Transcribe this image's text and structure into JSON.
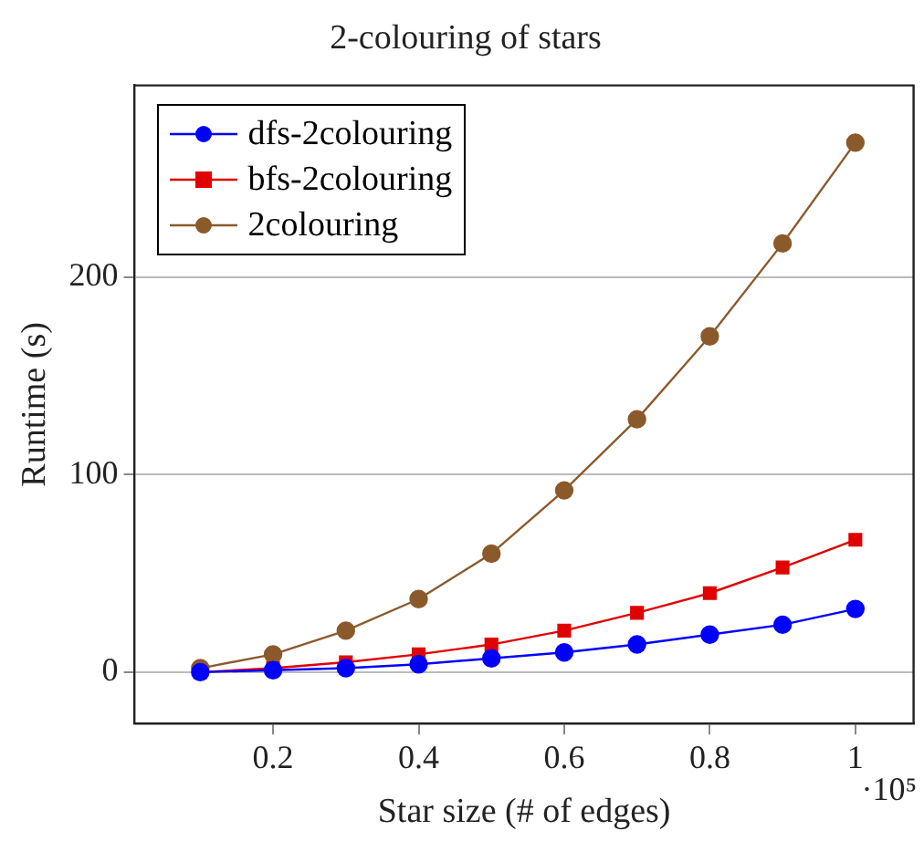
{
  "chart_data": {
    "type": "line",
    "title": "2-colouring of stars",
    "xlabel": "Star size (# of edges)",
    "ylabel": "Runtime (s)",
    "x": [
      0.1,
      0.2,
      0.3,
      0.4,
      0.5,
      0.6,
      0.7,
      0.8,
      0.9,
      1
    ],
    "series": [
      {
        "name": "dfs-2colouring",
        "color": "#0000ff",
        "marker": "circle",
        "values": [
          0,
          1,
          2,
          4,
          7,
          10,
          14,
          19,
          24,
          32
        ]
      },
      {
        "name": "bfs-2colouring",
        "color": "#e00000",
        "marker": "square",
        "values": [
          0,
          2,
          5,
          9,
          14,
          21,
          30,
          40,
          53,
          67
        ]
      },
      {
        "name": "2colouring",
        "color": "#8b5a2b",
        "marker": "circle",
        "values": [
          2,
          9,
          21,
          37,
          60,
          92,
          128,
          170,
          217,
          268
        ]
      }
    ],
    "xlim": [
      0.01,
      1.08
    ],
    "xticks": [
      0.2,
      0.4,
      0.6,
      0.8,
      1
    ],
    "ylim": [
      -26,
      297
    ],
    "yticks": [
      0,
      100,
      200
    ],
    "grid": "y",
    "legend": "top left",
    "line_style": "solid",
    "annotations": [
      "·10⁵"
    ]
  }
}
